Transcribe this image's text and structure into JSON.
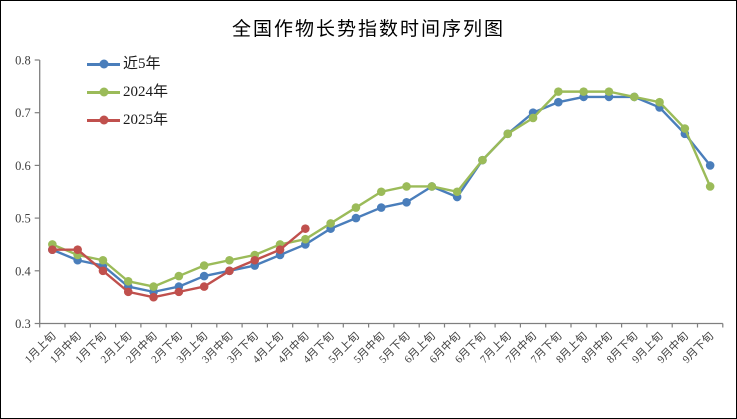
{
  "chart_data": {
    "type": "line",
    "title": "全国作物长势指数时间序列图",
    "xlabel": "",
    "ylabel": "",
    "ylim": [
      0.3,
      0.8
    ],
    "yticks": [
      0.3,
      0.4,
      0.5,
      0.6,
      0.7,
      0.8
    ],
    "grid": false,
    "legend_position": "top-left",
    "marker": "circle",
    "axis_color": "#7f7f7f",
    "tick_label_color": "#404040",
    "categories": [
      "1月上旬",
      "1月中旬",
      "1月下旬",
      "2月上旬",
      "2月中旬",
      "2月下旬",
      "3月上旬",
      "3月中旬",
      "3月下旬",
      "4月上旬",
      "4月中旬",
      "4月下旬",
      "5月上旬",
      "5月中旬",
      "5月下旬",
      "6月上旬",
      "6月中旬",
      "6月下旬",
      "7月上旬",
      "7月中旬",
      "7月下旬",
      "8月上旬",
      "8月中旬",
      "8月下旬",
      "9月上旬",
      "9月中旬",
      "9月下旬"
    ],
    "series": [
      {
        "name": "近5年",
        "color": "#4a7ebb",
        "values": [
          0.44,
          0.42,
          0.41,
          0.37,
          0.36,
          0.37,
          0.39,
          0.4,
          0.41,
          0.43,
          0.45,
          0.48,
          0.5,
          0.52,
          0.53,
          0.56,
          0.54,
          0.61,
          0.66,
          0.7,
          0.72,
          0.73,
          0.73,
          0.73,
          0.71,
          0.66,
          0.6
        ]
      },
      {
        "name": "2024年",
        "color": "#9bbb59",
        "values": [
          0.45,
          0.43,
          0.42,
          0.38,
          0.37,
          0.39,
          0.41,
          0.42,
          0.43,
          0.45,
          0.46,
          0.49,
          0.52,
          0.55,
          0.56,
          0.56,
          0.55,
          0.61,
          0.66,
          0.69,
          0.74,
          0.74,
          0.74,
          0.73,
          0.72,
          0.67,
          0.56
        ]
      },
      {
        "name": "2025年",
        "color": "#c0504d",
        "values": [
          0.44,
          0.44,
          0.4,
          0.36,
          0.35,
          0.36,
          0.37,
          0.4,
          0.42,
          0.44,
          0.48
        ]
      }
    ]
  }
}
